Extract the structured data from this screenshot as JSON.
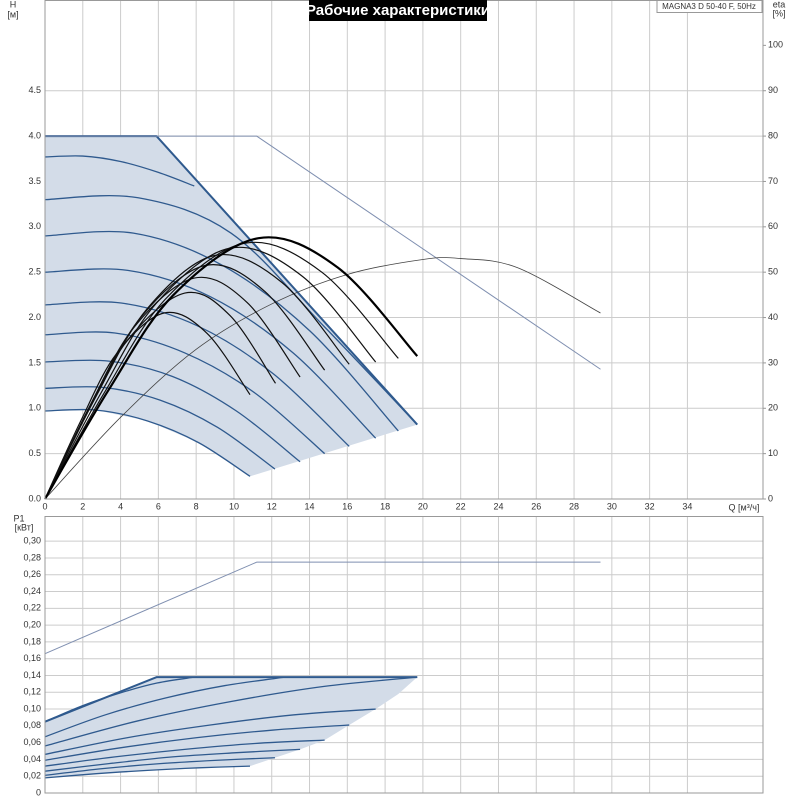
{
  "chart_data": [
    {
      "type": "line",
      "title": "Рабочие характеристики",
      "annotation": "MAGNA3 D 50-40 F, 50Hz",
      "x_label": "Q [м³/ч]",
      "y_label": "H",
      "y_unit": "[м]",
      "y2_label": "eta",
      "y2_unit": "[%]",
      "xlim": [
        0,
        38
      ],
      "xticks": [
        0,
        2,
        4,
        6,
        8,
        10,
        12,
        14,
        16,
        18,
        20,
        22,
        24,
        26,
        28,
        30,
        32,
        34
      ],
      "ylim": [
        0,
        5.5
      ],
      "yticks": [
        {
          "value": 0,
          "label": "0.0"
        },
        0.5,
        {
          "value": 1,
          "label": "1.0"
        },
        1.5,
        {
          "value": 2,
          "label": "2.0"
        },
        2.5,
        {
          "value": 3,
          "label": "3.0"
        },
        3.5,
        {
          "value": 4,
          "label": "4.0"
        },
        4.5
      ],
      "y2lim": [
        0,
        110
      ],
      "y2ticks": [
        0,
        10,
        20,
        30,
        40,
        50,
        60,
        70,
        80,
        90,
        100
      ],
      "grid": true,
      "series": [
        {
          "style": "area",
          "color": "#d3dce8",
          "x": [
            0,
            5.9,
            19.7,
            10.85,
            8.14,
            5.43,
            2.71,
            0
          ],
          "values": [
            4.0,
            4.0,
            0.82,
            0.25,
            0.62,
            0.86,
            0.98,
            0.97
          ]
        },
        {
          "style": "curve",
          "color": "#2f5a8e",
          "width": 1.3,
          "x": [
            0,
            2.71,
            5.43,
            8.14,
            10.85
          ],
          "values": [
            0.97,
            0.98,
            0.86,
            0.62,
            0.25
          ]
        },
        {
          "style": "curve",
          "color": "#2f5a8e",
          "width": 1.3,
          "x": [
            0,
            3.04,
            6.09,
            9.13,
            12.17
          ],
          "values": [
            1.22,
            1.23,
            1.09,
            0.79,
            0.33
          ]
        },
        {
          "style": "curve",
          "color": "#2f5a8e",
          "width": 1.3,
          "x": [
            0,
            3.38,
            6.75,
            10.13,
            13.5
          ],
          "values": [
            1.51,
            1.52,
            1.35,
            0.97,
            0.41
          ]
        },
        {
          "style": "curve",
          "color": "#2f5a8e",
          "width": 1.3,
          "x": [
            0,
            3.7,
            7.4,
            11.1,
            14.8
          ],
          "values": [
            1.81,
            1.83,
            1.61,
            1.17,
            0.5
          ]
        },
        {
          "style": "curve",
          "color": "#2f5a8e",
          "width": 1.3,
          "x": [
            0,
            4.03,
            8.05,
            12.08,
            16.1
          ],
          "values": [
            2.14,
            2.16,
            1.91,
            1.38,
            0.58
          ]
        },
        {
          "style": "curve",
          "color": "#2f5a8e",
          "width": 1.3,
          "x": [
            0,
            4.38,
            8.75,
            13.13,
            17.5
          ],
          "values": [
            2.5,
            2.52,
            2.23,
            1.61,
            0.67
          ]
        },
        {
          "style": "curve",
          "color": "#2f5a8e",
          "width": 1.3,
          "x": [
            0,
            4.68,
            9.35,
            14.03,
            18.7
          ],
          "values": [
            2.9,
            2.93,
            2.58,
            1.85,
            0.75
          ]
        },
        {
          "style": "curve",
          "color": "#2f5a8e",
          "width": 1.3,
          "x": [
            0,
            4.93,
            9.85,
            14.78,
            19.7
          ],
          "values": [
            3.3,
            3.32,
            2.93,
            1.9,
            0.82
          ]
        },
        {
          "style": "curve",
          "color": "#2f5a8e",
          "width": 1.3,
          "x": [
            0,
            2,
            4,
            6,
            7.9
          ],
          "values": [
            3.77,
            3.78,
            3.72,
            3.6,
            3.45
          ]
        },
        {
          "style": "line",
          "color": "#2f5a8e",
          "width": 2,
          "x": [
            0,
            5.9,
            19.7
          ],
          "values": [
            4.0,
            4.0,
            0.82
          ]
        },
        {
          "style": "line",
          "color": "#7f8fb0",
          "width": 1,
          "x": [
            0,
            11.2,
            29.4
          ],
          "values": [
            4.0,
            4.0,
            1.43
          ]
        },
        {
          "style": "curve",
          "axis": "y2",
          "color": "#444",
          "width": 0.8,
          "x": [
            0,
            4,
            8,
            12,
            16,
            20,
            22,
            25,
            29.4
          ],
          "values": [
            0,
            18,
            33,
            43,
            49.5,
            52.8,
            53,
            51,
            41
          ]
        },
        {
          "style": "curve",
          "axis": "y2",
          "color": "#111",
          "width": 1.2,
          "x": [
            0,
            1.89,
            3.78,
            6.3,
            8.58,
            10.85
          ],
          "values": [
            0,
            17.2,
            32,
            41,
            36.5,
            23
          ]
        },
        {
          "style": "curve",
          "axis": "y2",
          "color": "#111",
          "width": 1.2,
          "x": [
            0,
            2.22,
            4.44,
            7.4,
            9.8,
            12.2
          ],
          "values": [
            0,
            19.1,
            35.4,
            45.4,
            40.4,
            25.5
          ]
        },
        {
          "style": "curve",
          "axis": "y2",
          "color": "#111",
          "width": 1.2,
          "x": [
            0,
            2.37,
            4.74,
            7.9,
            10.7,
            13.5
          ],
          "values": [
            0,
            20.5,
            38,
            48.7,
            43.3,
            26.9
          ]
        },
        {
          "style": "curve",
          "axis": "y2",
          "color": "#111",
          "width": 1.2,
          "x": [
            0,
            2.55,
            5.1,
            8.5,
            11.65,
            14.8
          ],
          "values": [
            0,
            21.6,
            40.2,
            51.5,
            45.7,
            28.4
          ]
        },
        {
          "style": "curve",
          "axis": "y2",
          "color": "#111",
          "width": 1.2,
          "x": [
            0,
            2.7,
            5.4,
            9,
            12.55,
            16.1
          ],
          "values": [
            0,
            22.6,
            41.9,
            53.7,
            47.7,
            29.7
          ]
        },
        {
          "style": "curve",
          "axis": "y2",
          "color": "#111",
          "width": 1.2,
          "x": [
            0,
            2.94,
            5.88,
            9.8,
            13.65,
            17.5
          ],
          "values": [
            0,
            23.2,
            43.1,
            55.3,
            49,
            30.2
          ]
        },
        {
          "style": "curve",
          "axis": "y2",
          "color": "#111",
          "width": 1.2,
          "x": [
            0,
            3.18,
            6.36,
            10.6,
            14.65,
            18.7
          ],
          "values": [
            0,
            23.7,
            44,
            56.4,
            50,
            31
          ]
        },
        {
          "style": "curve",
          "axis": "y2",
          "color": "#000",
          "width": 2.2,
          "x": [
            0,
            3.39,
            6.78,
            11.3,
            15.5,
            19.7
          ],
          "values": [
            0,
            24.2,
            44.9,
            57.5,
            51,
            31.5
          ]
        }
      ]
    },
    {
      "type": "line",
      "y_label": "P1",
      "y_unit": "[кВт]",
      "xlim": [
        0,
        38
      ],
      "xticks": [
        0,
        2,
        4,
        6,
        8,
        10,
        12,
        14,
        16,
        18,
        20,
        22,
        24,
        26,
        28,
        30,
        32,
        34
      ],
      "xtick_labels": false,
      "ylim": [
        0,
        0.33
      ],
      "yticks": [
        0,
        {
          "value": 0.02,
          "label": "0,02"
        },
        {
          "value": 0.04,
          "label": "0,04"
        },
        {
          "value": 0.06,
          "label": "0,06"
        },
        {
          "value": 0.08,
          "label": "0,08"
        },
        {
          "value": 0.1,
          "label": "0,10"
        },
        {
          "value": 0.12,
          "label": "0,12"
        },
        {
          "value": 0.14,
          "label": "0,14"
        },
        {
          "value": 0.16,
          "label": "0,16"
        },
        {
          "value": 0.18,
          "label": "0,18"
        },
        {
          "value": 0.2,
          "label": "0,20"
        },
        {
          "value": 0.22,
          "label": "0,22"
        },
        {
          "value": 0.24,
          "label": "0,24"
        },
        {
          "value": 0.26,
          "label": "0,26"
        },
        {
          "value": 0.28,
          "label": "0,28"
        },
        {
          "value": 0.3,
          "label": "0,30"
        }
      ],
      "grid": true,
      "series": [
        {
          "style": "area",
          "color": "#d3dce8",
          "x": [
            0,
            5.9,
            19.7,
            18.7,
            17.5,
            16.1,
            14.8,
            13.5,
            12.17,
            10.85,
            8.14,
            5.43,
            2.71,
            0
          ],
          "values": [
            0.085,
            0.138,
            0.138,
            0.118,
            0.1,
            0.081,
            0.063,
            0.052,
            0.042,
            0.032,
            0.03,
            0.027,
            0.023,
            0.018
          ]
        },
        {
          "style": "curve",
          "color": "#2f5a8e",
          "width": 1.3,
          "x": [
            0,
            2.71,
            5.43,
            8.14,
            10.85
          ],
          "values": [
            0.018,
            0.023,
            0.027,
            0.03,
            0.032
          ]
        },
        {
          "style": "curve",
          "color": "#2f5a8e",
          "width": 1.3,
          "x": [
            0,
            3.04,
            6.09,
            9.13,
            12.17
          ],
          "values": [
            0.021,
            0.029,
            0.035,
            0.039,
            0.042
          ]
        },
        {
          "style": "curve",
          "color": "#2f5a8e",
          "width": 1.3,
          "x": [
            0,
            3.38,
            6.75,
            10.13,
            13.5
          ],
          "values": [
            0.026,
            0.035,
            0.043,
            0.048,
            0.052
          ]
        },
        {
          "style": "curve",
          "color": "#2f5a8e",
          "width": 1.3,
          "x": [
            0,
            3.7,
            7.4,
            11.1,
            14.8
          ],
          "values": [
            0.032,
            0.043,
            0.052,
            0.059,
            0.063
          ]
        },
        {
          "style": "curve",
          "color": "#2f5a8e",
          "width": 1.3,
          "x": [
            0,
            4.03,
            8.05,
            12.08,
            16.1
          ],
          "values": [
            0.039,
            0.054,
            0.066,
            0.075,
            0.081
          ]
        },
        {
          "style": "curve",
          "color": "#2f5a8e",
          "width": 1.3,
          "x": [
            0,
            4.38,
            8.75,
            13.13,
            17.5
          ],
          "values": [
            0.046,
            0.066,
            0.081,
            0.093,
            0.1
          ]
        },
        {
          "style": "curve",
          "color": "#2f5a8e",
          "width": 1.3,
          "x": [
            0,
            4.93,
            9.85,
            14.78,
            19.7
          ],
          "values": [
            0.056,
            0.086,
            0.109,
            0.127,
            0.138
          ]
        },
        {
          "style": "curve",
          "color": "#2f5a8e",
          "width": 1.3,
          "x": [
            0,
            3.18,
            6.35,
            9.53,
            12.7
          ],
          "values": [
            0.067,
            0.093,
            0.113,
            0.128,
            0.138
          ]
        },
        {
          "style": "curve",
          "color": "#2f5a8e",
          "width": 1.3,
          "x": [
            0,
            1.98,
            3.95,
            5.93,
            7.9
          ],
          "values": [
            0.085,
            0.104,
            0.119,
            0.131,
            0.138
          ]
        },
        {
          "style": "line",
          "color": "#2f5a8e",
          "width": 2,
          "x": [
            0,
            5.9,
            19.7
          ],
          "values": [
            0.085,
            0.138,
            0.138
          ]
        },
        {
          "style": "line",
          "color": "#7f8fb0",
          "width": 1,
          "x": [
            0,
            11.2,
            29.4
          ],
          "values": [
            0.166,
            0.275,
            0.275
          ]
        }
      ]
    }
  ]
}
